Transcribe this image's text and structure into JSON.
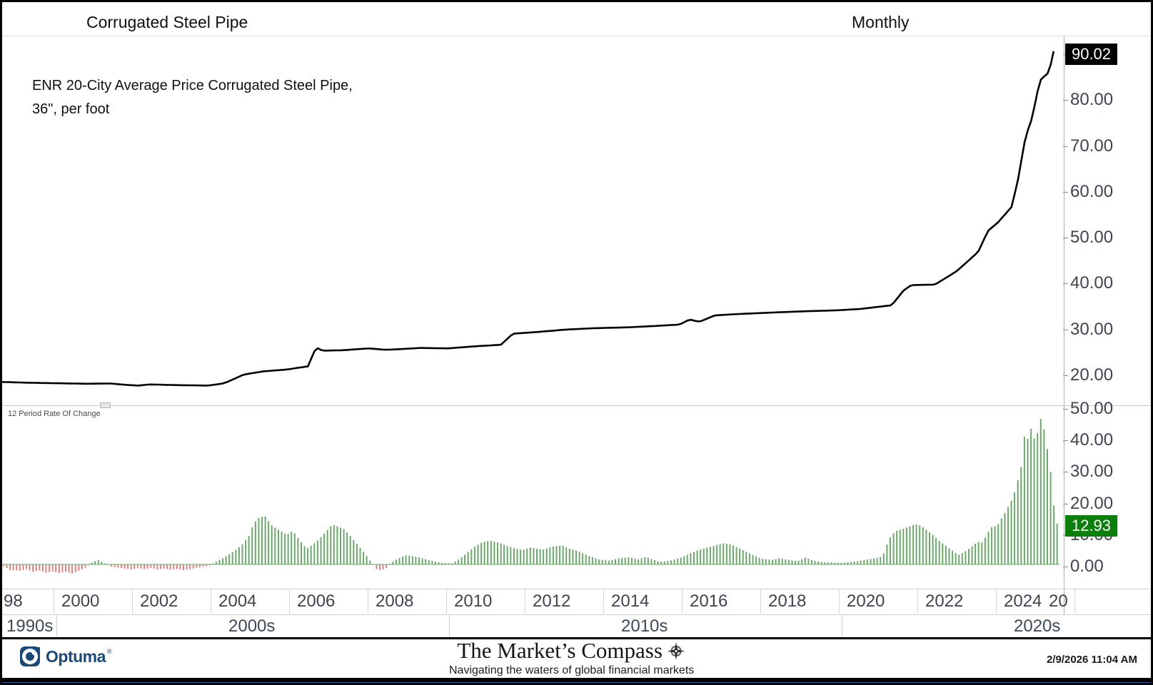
{
  "header": {
    "title": "Corrugated Steel Pipe",
    "timeframe": "Monthly"
  },
  "annotation": {
    "line1": "ENR 20-City Average Price Corrugated Steel Pipe,",
    "line2": "36\", per foot"
  },
  "price_axis": {
    "last_badge": "90.02",
    "ticks": [
      {
        "value": 90,
        "label": "90.00"
      },
      {
        "value": 80,
        "label": "80.00"
      },
      {
        "value": 70,
        "label": "70.00"
      },
      {
        "value": 60,
        "label": "60.00"
      },
      {
        "value": 50,
        "label": "50.00"
      },
      {
        "value": 40,
        "label": "40.00"
      },
      {
        "value": 30,
        "label": "30.00"
      },
      {
        "value": 20,
        "label": "20.00"
      }
    ]
  },
  "roc_panel": {
    "indicator_label": "12 Period Rate Of Change",
    "last_badge": "12.93",
    "ticks": [
      {
        "value": 50,
        "label": "50.00"
      },
      {
        "value": 40,
        "label": "40.00"
      },
      {
        "value": 30,
        "label": "30.00"
      },
      {
        "value": 20,
        "label": "20.00"
      },
      {
        "value": 10,
        "label": "10.00"
      },
      {
        "value": 0,
        "label": "0.00"
      }
    ]
  },
  "x_axis": {
    "ticks": [
      {
        "year": 1998,
        "label": "98"
      },
      {
        "year": 2000,
        "label": "2000"
      },
      {
        "year": 2002,
        "label": "2002"
      },
      {
        "year": 2004,
        "label": "2004"
      },
      {
        "year": 2006,
        "label": "2006"
      },
      {
        "year": 2008,
        "label": "2008"
      },
      {
        "year": 2010,
        "label": "2010"
      },
      {
        "year": 2012,
        "label": "2012"
      },
      {
        "year": 2014,
        "label": "2014"
      },
      {
        "year": 2016,
        "label": "2016"
      },
      {
        "year": 2018,
        "label": "2018"
      },
      {
        "year": 2020,
        "label": "2020"
      },
      {
        "year": 2022,
        "label": "2022"
      },
      {
        "year": 2024,
        "label": "2024"
      },
      {
        "year": 2026,
        "label": "20"
      }
    ],
    "decades": [
      {
        "start_year": 1990,
        "label": "1990s"
      },
      {
        "start_year": 2000,
        "label": "2000s"
      },
      {
        "start_year": 2010,
        "label": "2010s"
      },
      {
        "start_year": 2020,
        "label": "2020s"
      }
    ]
  },
  "footer": {
    "brand": "Optuma",
    "center_title": "The Market’s Compass",
    "tagline": "Navigating the waters of global financial markets",
    "timestamp": "2/9/2026 11:04 AM"
  },
  "colors": {
    "price_line": "#000000",
    "price_badge_bg": "#000000",
    "roc_badge_bg": "#0b7e0b",
    "bar_green": "#6aa96a",
    "bar_red": "#df8080",
    "bottom_strip_blue": "#30619c",
    "brand_navy": "#1b4a78"
  },
  "chart_data": {
    "type": "line+bar",
    "title": "Corrugated Steel Pipe",
    "timeframe": "Monthly",
    "x_range_years": [
      1998.5,
      2026.0
    ],
    "price_series": {
      "name": "ENR 20-City Average Price Corrugated Steel Pipe, 36\", per foot",
      "last_value": 90.02,
      "visible_y_range": [
        16,
        94
      ],
      "keyframes": [
        [
          1998.5,
          18.1
        ],
        [
          1999.3,
          17.9
        ],
        [
          2000.0,
          17.8
        ],
        [
          2000.7,
          17.7
        ],
        [
          2001.3,
          17.75
        ],
        [
          2001.7,
          17.45
        ],
        [
          2002.0,
          17.3
        ],
        [
          2002.3,
          17.55
        ],
        [
          2003.0,
          17.4
        ],
        [
          2003.8,
          17.3
        ],
        [
          2004.2,
          17.8
        ],
        [
          2004.7,
          19.7
        ],
        [
          2005.2,
          20.4
        ],
        [
          2005.8,
          20.8
        ],
        [
          2006.1,
          21.2
        ],
        [
          2006.35,
          21.5
        ],
        [
          2006.45,
          24.0
        ],
        [
          2006.55,
          25.6
        ],
        [
          2006.7,
          24.9
        ],
        [
          2007.2,
          25.0
        ],
        [
          2007.9,
          25.4
        ],
        [
          2008.3,
          25.1
        ],
        [
          2008.6,
          25.2
        ],
        [
          2009.2,
          25.5
        ],
        [
          2009.9,
          25.4
        ],
        [
          2010.5,
          25.8
        ],
        [
          2011.25,
          26.2
        ],
        [
          2011.55,
          28.6
        ],
        [
          2012.2,
          29.0
        ],
        [
          2012.9,
          29.5
        ],
        [
          2013.6,
          29.8
        ],
        [
          2014.5,
          30.0
        ],
        [
          2015.2,
          30.3
        ],
        [
          2015.8,
          30.6
        ],
        [
          2016.05,
          31.7
        ],
        [
          2016.3,
          31.2
        ],
        [
          2016.7,
          32.6
        ],
        [
          2017.3,
          32.9
        ],
        [
          2018.1,
          33.2
        ],
        [
          2019.0,
          33.5
        ],
        [
          2019.8,
          33.7
        ],
        [
          2020.4,
          34.0
        ],
        [
          2020.9,
          34.5
        ],
        [
          2021.2,
          34.8
        ],
        [
          2021.5,
          38.0
        ],
        [
          2021.7,
          39.2
        ],
        [
          2022.3,
          39.3
        ],
        [
          2022.85,
          42.2
        ],
        [
          2023.4,
          46.4
        ],
        [
          2023.65,
          51.0
        ],
        [
          2023.9,
          52.8
        ],
        [
          2024.25,
          56.2
        ],
        [
          2024.4,
          61.4
        ],
        [
          2024.62,
          72.1
        ],
        [
          2024.72,
          74.0
        ],
        [
          2024.8,
          76.5
        ],
        [
          2024.9,
          81.0
        ],
        [
          2025.0,
          84.0
        ],
        [
          2025.05,
          83.2
        ],
        [
          2025.12,
          86.3
        ],
        [
          2025.17,
          85.2
        ],
        [
          2025.22,
          88.6
        ],
        [
          2025.26,
          86.8
        ],
        [
          2025.32,
          90.02
        ]
      ]
    },
    "roc_series": {
      "name": "12 Period Rate Of Change",
      "last_value": 12.93,
      "visible_y_range": [
        -6,
        54
      ],
      "keyframes": [
        [
          1998.58,
          -0.5
        ],
        [
          1998.75,
          -1.8
        ],
        [
          1999.0,
          -2.0
        ],
        [
          1999.17,
          -1.5
        ],
        [
          1999.33,
          -2.3
        ],
        [
          1999.5,
          -1.9
        ],
        [
          1999.67,
          -2.6
        ],
        [
          1999.83,
          -2.2
        ],
        [
          2000.0,
          -2.8
        ],
        [
          2000.17,
          -2.3
        ],
        [
          2000.33,
          -2.9
        ],
        [
          2000.5,
          -2.0
        ],
        [
          2000.67,
          -1.0
        ],
        [
          2000.83,
          0.6
        ],
        [
          2001.0,
          1.4
        ],
        [
          2001.17,
          0.3
        ],
        [
          2001.33,
          -0.7
        ],
        [
          2001.5,
          -1.0
        ],
        [
          2001.67,
          -1.3
        ],
        [
          2001.83,
          -1.6
        ],
        [
          2002.0,
          -1.2
        ],
        [
          2002.17,
          -1.5
        ],
        [
          2002.33,
          -1.1
        ],
        [
          2002.5,
          -1.6
        ],
        [
          2002.67,
          -1.3
        ],
        [
          2002.83,
          -1.7
        ],
        [
          2003.0,
          -1.4
        ],
        [
          2003.17,
          -1.8
        ],
        [
          2003.33,
          -1.5
        ],
        [
          2003.5,
          -1.1
        ],
        [
          2003.67,
          -0.7
        ],
        [
          2003.83,
          -0.3
        ],
        [
          2004.0,
          0.9
        ],
        [
          2004.17,
          2.0
        ],
        [
          2004.33,
          3.2
        ],
        [
          2004.5,
          4.6
        ],
        [
          2004.67,
          6.4
        ],
        [
          2004.83,
          9.0
        ],
        [
          2004.95,
          13.0
        ],
        [
          2005.1,
          15.0
        ],
        [
          2005.25,
          15.2
        ],
        [
          2005.4,
          12.5
        ],
        [
          2005.6,
          10.8
        ],
        [
          2005.8,
          9.4
        ],
        [
          2005.95,
          10.6
        ],
        [
          2006.1,
          8.0
        ],
        [
          2006.3,
          5.0
        ],
        [
          2006.45,
          6.2
        ],
        [
          2006.6,
          7.8
        ],
        [
          2006.8,
          10.5
        ],
        [
          2006.95,
          12.6
        ],
        [
          2007.1,
          12.0
        ],
        [
          2007.25,
          11.2
        ],
        [
          2007.4,
          9.2
        ],
        [
          2007.6,
          6.2
        ],
        [
          2007.8,
          3.2
        ],
        [
          2007.95,
          0.6
        ],
        [
          2008.08,
          -1.5
        ],
        [
          2008.2,
          -1.9
        ],
        [
          2008.33,
          -1.1
        ],
        [
          2008.45,
          0.5
        ],
        [
          2008.6,
          1.7
        ],
        [
          2008.8,
          2.9
        ],
        [
          2009.0,
          2.6
        ],
        [
          2009.2,
          2.1
        ],
        [
          2009.4,
          1.4
        ],
        [
          2009.6,
          0.8
        ],
        [
          2009.8,
          0.4
        ],
        [
          2010.0,
          0.3
        ],
        [
          2010.2,
          1.8
        ],
        [
          2010.4,
          3.8
        ],
        [
          2010.6,
          5.8
        ],
        [
          2010.8,
          7.2
        ],
        [
          2011.0,
          7.5
        ],
        [
          2011.2,
          6.8
        ],
        [
          2011.4,
          5.9
        ],
        [
          2011.6,
          5.1
        ],
        [
          2011.8,
          4.5
        ],
        [
          2012.0,
          5.4
        ],
        [
          2012.3,
          4.6
        ],
        [
          2012.55,
          5.6
        ],
        [
          2012.8,
          6.0
        ],
        [
          2013.0,
          5.0
        ],
        [
          2013.25,
          4.0
        ],
        [
          2013.5,
          2.6
        ],
        [
          2013.75,
          1.6
        ],
        [
          2014.0,
          1.2
        ],
        [
          2014.25,
          1.9
        ],
        [
          2014.5,
          2.3
        ],
        [
          2014.75,
          1.6
        ],
        [
          2014.95,
          2.4
        ],
        [
          2015.1,
          1.6
        ],
        [
          2015.3,
          0.8
        ],
        [
          2015.55,
          1.2
        ],
        [
          2015.85,
          2.2
        ],
        [
          2016.05,
          3.4
        ],
        [
          2016.25,
          4.4
        ],
        [
          2016.45,
          5.2
        ],
        [
          2016.65,
          5.8
        ],
        [
          2016.9,
          6.7
        ],
        [
          2017.1,
          6.4
        ],
        [
          2017.3,
          5.2
        ],
        [
          2017.5,
          4.0
        ],
        [
          2017.7,
          2.8
        ],
        [
          2017.9,
          1.8
        ],
        [
          2018.15,
          1.4
        ],
        [
          2018.35,
          2.0
        ],
        [
          2018.55,
          1.5
        ],
        [
          2018.8,
          1.0
        ],
        [
          2019.0,
          2.2
        ],
        [
          2019.2,
          1.2
        ],
        [
          2019.45,
          0.7
        ],
        [
          2019.7,
          0.6
        ],
        [
          2019.95,
          0.5
        ],
        [
          2020.2,
          0.8
        ],
        [
          2020.5,
          1.4
        ],
        [
          2020.75,
          1.9
        ],
        [
          2020.9,
          2.2
        ],
        [
          2021.0,
          3.5
        ],
        [
          2021.1,
          7.0
        ],
        [
          2021.2,
          9.5
        ],
        [
          2021.35,
          10.8
        ],
        [
          2021.5,
          11.3
        ],
        [
          2021.65,
          12.0
        ],
        [
          2021.8,
          12.8
        ],
        [
          2021.95,
          12.2
        ],
        [
          2022.1,
          10.8
        ],
        [
          2022.25,
          9.3
        ],
        [
          2022.4,
          7.6
        ],
        [
          2022.55,
          6.2
        ],
        [
          2022.7,
          4.8
        ],
        [
          2022.9,
          3.0
        ],
        [
          2023.05,
          4.0
        ],
        [
          2023.2,
          5.2
        ],
        [
          2023.35,
          6.8
        ],
        [
          2023.45,
          7.2
        ],
        [
          2023.52,
          6.9
        ],
        [
          2023.62,
          9.5
        ],
        [
          2023.72,
          11.5
        ],
        [
          2023.8,
          12.5
        ],
        [
          2023.87,
          11.6
        ],
        [
          2023.95,
          13.8
        ],
        [
          2024.05,
          15.6
        ],
        [
          2024.13,
          17.5
        ],
        [
          2024.2,
          19.0
        ],
        [
          2024.3,
          21.5
        ],
        [
          2024.4,
          26.0
        ],
        [
          2024.5,
          31.0
        ],
        [
          2024.56,
          37.8
        ],
        [
          2024.62,
          46.0
        ],
        [
          2024.68,
          37.5
        ],
        [
          2024.75,
          43.3
        ],
        [
          2024.83,
          40.0
        ],
        [
          2024.9,
          40.2
        ],
        [
          2024.97,
          47.5
        ],
        [
          2025.03,
          44.4
        ],
        [
          2025.1,
          42.2
        ],
        [
          2025.17,
          36.0
        ],
        [
          2025.24,
          30.4
        ],
        [
          2025.31,
          18.9
        ],
        [
          2025.38,
          18.2
        ],
        [
          2025.45,
          12.93
        ]
      ]
    }
  }
}
